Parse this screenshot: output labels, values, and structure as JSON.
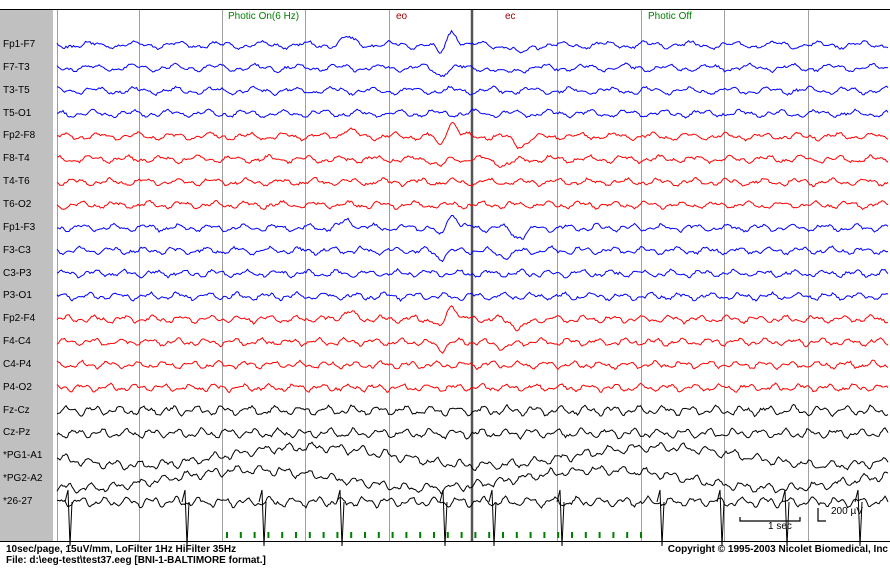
{
  "events": [
    {
      "label": "Photic On(6 Hz)",
      "color": "#008000"
    },
    {
      "label": "eo",
      "color": "#a00000"
    },
    {
      "label": "ec",
      "color": "#a00000"
    },
    {
      "label": "Photic Off",
      "color": "#008000"
    }
  ],
  "channels": [
    {
      "label": "Fp1-F7",
      "color": "#0000ff"
    },
    {
      "label": "F7-T3",
      "color": "#0000ff"
    },
    {
      "label": "T3-T5",
      "color": "#0000ff"
    },
    {
      "label": "T5-O1",
      "color": "#0000ff"
    },
    {
      "label": "Fp2-F8",
      "color": "#ff0000"
    },
    {
      "label": "F8-T4",
      "color": "#ff0000"
    },
    {
      "label": "T4-T6",
      "color": "#ff0000"
    },
    {
      "label": "T6-O2",
      "color": "#ff0000"
    },
    {
      "label": "Fp1-F3",
      "color": "#0000ff"
    },
    {
      "label": "F3-C3",
      "color": "#0000ff"
    },
    {
      "label": "C3-P3",
      "color": "#0000ff"
    },
    {
      "label": "P3-O1",
      "color": "#0000ff"
    },
    {
      "label": "Fp2-F4",
      "color": "#ff0000"
    },
    {
      "label": "F4-C4",
      "color": "#ff0000"
    },
    {
      "label": "C4-P4",
      "color": "#ff0000"
    },
    {
      "label": "P4-O2",
      "color": "#ff0000"
    },
    {
      "label": "Fz-Cz",
      "color": "#000000"
    },
    {
      "label": "Cz-Pz",
      "color": "#000000"
    },
    {
      "label": "*PG1-A1",
      "color": "#000000"
    },
    {
      "label": "*PG2-A2",
      "color": "#000000"
    },
    {
      "label": "*26-27",
      "color": "#000000"
    }
  ],
  "scale_bar": {
    "time_label": "1 sec",
    "amplitude_label": "200 µV"
  },
  "footer": {
    "settings": "10sec/page,  15uV/mm,  LoFilter 1Hz  HiFilter 35Hz",
    "file": "File: d:\\eeg-test\\test37.eeg  [BNI-1-BALTIMORE format.]",
    "copyright": "Copyright © 1995-2003 Nicolet Biomedical, Inc"
  },
  "photic_marker_color": "#008000"
}
